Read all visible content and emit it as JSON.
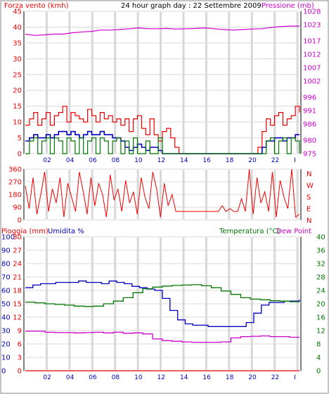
{
  "colors": {
    "red": "#ee0000",
    "blue": "#0000bb",
    "magenta": "#cc00cc",
    "green": "#007700",
    "grid": "#d8d8d8",
    "frame": "#000000"
  },
  "header": {
    "wind_title": "Forza vento (kmh)",
    "graph_title": "24 hour graph day : 22 Settembre 2009",
    "pressure_title": "Pressione (mb)"
  },
  "chart_data": [
    {
      "id": "wind_pressure",
      "type": "line",
      "x_ticks": [
        "02",
        "04",
        "06",
        "08",
        "10",
        "12",
        "14",
        "16",
        "18",
        "20",
        "22",
        "I"
      ],
      "left_axis": {
        "label": "Forza vento (kmh)",
        "ticks": [
          0,
          5,
          10,
          15,
          20,
          25,
          30,
          35,
          40,
          45
        ],
        "range": [
          0,
          45
        ]
      },
      "right_axis": {
        "label": "Pressione (mb)",
        "ticks": [
          975,
          980,
          986,
          991,
          996,
          1002,
          1007,
          1012,
          1017,
          1023,
          1028
        ],
        "range": [
          975,
          1028
        ]
      },
      "series": [
        {
          "role": "wind_gust",
          "color": "#ee0000",
          "axis": "left",
          "values": [
            9,
            11,
            13,
            9,
            11,
            13,
            9,
            12,
            13,
            15,
            10,
            13,
            12,
            11,
            10,
            14,
            12,
            10,
            13,
            11,
            12,
            10,
            11,
            9,
            11,
            7,
            11,
            12,
            8,
            6,
            11,
            6,
            4,
            7,
            8,
            5,
            2,
            0,
            0,
            0,
            0,
            0,
            0,
            0,
            0,
            0,
            0,
            0,
            0,
            0,
            0,
            0,
            0,
            0,
            0,
            0,
            2,
            7,
            11,
            9,
            12,
            13,
            9,
            11,
            12,
            15,
            13
          ]
        },
        {
          "role": "wind_avg",
          "color": "#0000bb",
          "axis": "left",
          "values": [
            4,
            5,
            6,
            5,
            5,
            6,
            5,
            6,
            7,
            7,
            6,
            7,
            6,
            5,
            6,
            7,
            6,
            6,
            7,
            6,
            6,
            5,
            5,
            4,
            2,
            1,
            2,
            3,
            2,
            1,
            2,
            2,
            1,
            0,
            0,
            0,
            0,
            0,
            0,
            0,
            0,
            0,
            0,
            0,
            0,
            0,
            0,
            0,
            0,
            0,
            0,
            0,
            0,
            0,
            0,
            0,
            0,
            2,
            4,
            4,
            5,
            5,
            4,
            5,
            5,
            6,
            6
          ]
        },
        {
          "role": "wind_direction_low",
          "color": "#007700",
          "axis": "left",
          "values": [
            0,
            4,
            5,
            0,
            4,
            5,
            0,
            5,
            4,
            0,
            5,
            4,
            0,
            5,
            0,
            4,
            5,
            0,
            5,
            4,
            0,
            4,
            5,
            0,
            4,
            0,
            5,
            0,
            0,
            4,
            0,
            0,
            5,
            0,
            0,
            0,
            0,
            0,
            0,
            0,
            0,
            0,
            0,
            0,
            0,
            0,
            0,
            0,
            0,
            0,
            0,
            0,
            0,
            0,
            0,
            0,
            0,
            0,
            4,
            5,
            0,
            4,
            5,
            0,
            5,
            4,
            0
          ]
        },
        {
          "role": "pressure",
          "color": "#cc00cc",
          "axis": "right",
          "values": [
            1019.5,
            1019.0,
            1019.2,
            1019.5,
            1019.5,
            1020.0,
            1020.3,
            1020.5,
            1021.0,
            1021.0,
            1021.2,
            1021.5,
            1021.8,
            1021.5,
            1021.5,
            1021.6,
            1021.4,
            1021.5,
            1021.6,
            1021.8,
            1021.5,
            1021.2,
            1021.0,
            1021.2,
            1021.4,
            1021.5,
            1022.0,
            1022.3,
            1022.5,
            1022.5
          ]
        }
      ]
    },
    {
      "id": "wind_direction",
      "type": "line",
      "left_axis": {
        "ticks": [
          0,
          90,
          180,
          270,
          360
        ],
        "range": [
          0,
          360
        ]
      },
      "right_labels": [
        "N",
        "W",
        "S",
        "E",
        "N"
      ],
      "series": [
        {
          "role": "direction",
          "color": "#ee0000",
          "values": [
            240,
            80,
            300,
            40,
            180,
            340,
            60,
            220,
            120,
            300,
            20,
            260,
            160,
            60,
            340,
            200,
            40,
            300,
            100,
            260,
            180,
            20,
            320,
            140,
            220,
            60,
            280,
            120,
            200,
            40,
            300,
            160,
            80,
            340,
            220,
            20,
            260,
            100,
            180,
            60,
            60,
            60,
            60,
            60,
            60,
            60,
            60,
            60,
            60,
            60,
            60,
            100,
            60,
            80,
            60,
            60,
            150,
            60,
            360,
            40,
            300,
            120,
            200,
            60,
            340,
            20,
            280,
            160,
            80,
            360,
            20,
            40
          ]
        }
      ]
    },
    {
      "id": "temp_hum_rain",
      "type": "line",
      "x_ticks": [
        "02",
        "04",
        "06",
        "08",
        "10",
        "12",
        "14",
        "16",
        "18",
        "20",
        "22",
        "I"
      ],
      "labels": {
        "rain": "Pioggia (mm)",
        "humidity": "Umidita %",
        "temperature": "Temperatura (°C)",
        "dewpoint": "Dew Point"
      },
      "humidity_axis": {
        "ticks": [
          0,
          10,
          20,
          30,
          40,
          50,
          60,
          70,
          80,
          90,
          100
        ],
        "range": [
          0,
          100
        ]
      },
      "rain_axis": {
        "ticks": [
          0,
          3,
          6,
          9,
          12,
          15,
          18,
          21,
          24,
          27,
          30
        ],
        "range": [
          0,
          30
        ]
      },
      "temp_axis": {
        "ticks": [
          0,
          4,
          8,
          12,
          16,
          20,
          24,
          28,
          32,
          36,
          40
        ],
        "range": [
          0,
          40
        ]
      },
      "series": [
        {
          "role": "humidity",
          "color": "#0000bb",
          "axis": "humidity",
          "values": [
            62,
            64,
            65,
            65,
            66,
            66,
            66,
            67,
            66,
            66,
            65,
            67,
            66,
            65,
            63,
            62,
            61,
            60,
            54,
            45,
            38,
            35,
            34,
            34,
            33,
            33,
            33,
            33,
            33,
            36,
            43,
            49,
            51,
            51,
            52,
            52,
            53
          ]
        },
        {
          "role": "temperature",
          "color": "#007700",
          "axis": "temp",
          "values": [
            20.5,
            20.3,
            20.0,
            19.8,
            19.6,
            19.3,
            19.2,
            19.3,
            20.0,
            20.8,
            21.8,
            23.3,
            24.5,
            25.0,
            25.3,
            25.5,
            25.6,
            25.7,
            25.4,
            24.8,
            23.8,
            22.8,
            21.8,
            21.4,
            21.2,
            20.9,
            20.8,
            20.6,
            20.6
          ]
        },
        {
          "role": "dewpoint",
          "color": "#cc00cc",
          "axis": "temp",
          "values": [
            11.8,
            11.8,
            11.5,
            11.4,
            11.4,
            11.3,
            11.4,
            11.5,
            11.3,
            11.5,
            11.2,
            11.3,
            11.0,
            9.5,
            9.0,
            8.8,
            8.6,
            8.5,
            8.5,
            8.5,
            8.6,
            9.8,
            10.2,
            10.3,
            10.4,
            10.2,
            10.2,
            10.0,
            10.0
          ]
        },
        {
          "role": "rain",
          "color": "#ee0000",
          "axis": "rain",
          "values": [
            0,
            0,
            0,
            0,
            0,
            0,
            0,
            0,
            0,
            0,
            0,
            0,
            0
          ]
        }
      ]
    }
  ]
}
